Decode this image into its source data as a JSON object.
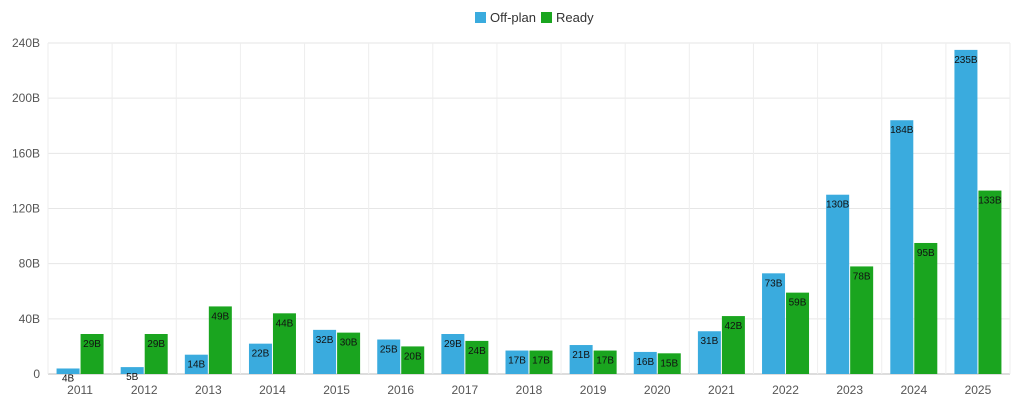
{
  "chart_data": {
    "type": "bar",
    "categories": [
      "2011",
      "2012",
      "2013",
      "2014",
      "2015",
      "2016",
      "2017",
      "2018",
      "2019",
      "2020",
      "2021",
      "2022",
      "2023",
      "2024",
      "2025"
    ],
    "series": [
      {
        "name": "Off-plan",
        "color": "#3aabde",
        "values": [
          4,
          5,
          14,
          22,
          32,
          25,
          29,
          17,
          21,
          16,
          31,
          73,
          130,
          184,
          235
        ],
        "labels": [
          "4B",
          "5B",
          "14B",
          "22B",
          "32B",
          "25B",
          "29B",
          "17B",
          "21B",
          "16B",
          "31B",
          "73B",
          "130B",
          "184B",
          "235B"
        ]
      },
      {
        "name": "Ready",
        "color": "#1aa51f",
        "values": [
          29,
          29,
          49,
          44,
          30,
          20,
          24,
          17,
          17,
          15,
          42,
          59,
          78,
          95,
          133
        ],
        "labels": [
          "29B",
          "29B",
          "49B",
          "44B",
          "30B",
          "20B",
          "24B",
          "17B",
          "17B",
          "15B",
          "42B",
          "59B",
          "78B",
          "95B",
          "133B"
        ]
      }
    ],
    "ylim": [
      0,
      240
    ],
    "yticks": [
      0,
      40,
      80,
      120,
      160,
      200,
      240
    ],
    "ytick_labels": [
      "0",
      "40B",
      "80B",
      "120B",
      "160B",
      "200B",
      "240B"
    ],
    "grid": true,
    "legend_position": "top-center"
  }
}
